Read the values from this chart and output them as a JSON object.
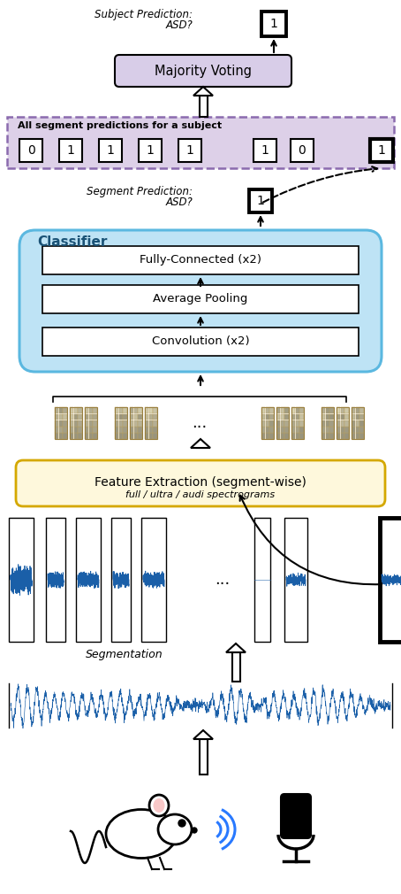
{
  "bg_color": "#ffffff",
  "blue_classifier_fc": "#BEE3F5",
  "blue_classifier_ec": "#5BB8E0",
  "yellow_feat_fc": "#FEF8DC",
  "yellow_feat_ec": "#D4A800",
  "purple_seg_fc": "#DDD0E8",
  "purple_seg_ec": "#8B6BAE",
  "white_box_fc": "#ffffff",
  "black_ec": "#000000",
  "blue_wave": "#1a5fa8",
  "majority_voting_fc": "#D8CDE8",
  "majority_voting_ec": "#000000",
  "segment_label": "All segment predictions for a subject",
  "left_vals": [
    "0",
    "1",
    "1",
    "1",
    "1"
  ],
  "right_vals": [
    "1",
    "0",
    "1"
  ],
  "classifier_label": "Classifier",
  "layer1": "Fully-Connected (x2)",
  "layer2": "Average Pooling",
  "layer3": "Convolution (x2)",
  "feature_label": "Feature Extraction (segment-wise)",
  "feature_sublabel": "full / ultra / audi spectrograms",
  "seg_label": "Segmentation"
}
